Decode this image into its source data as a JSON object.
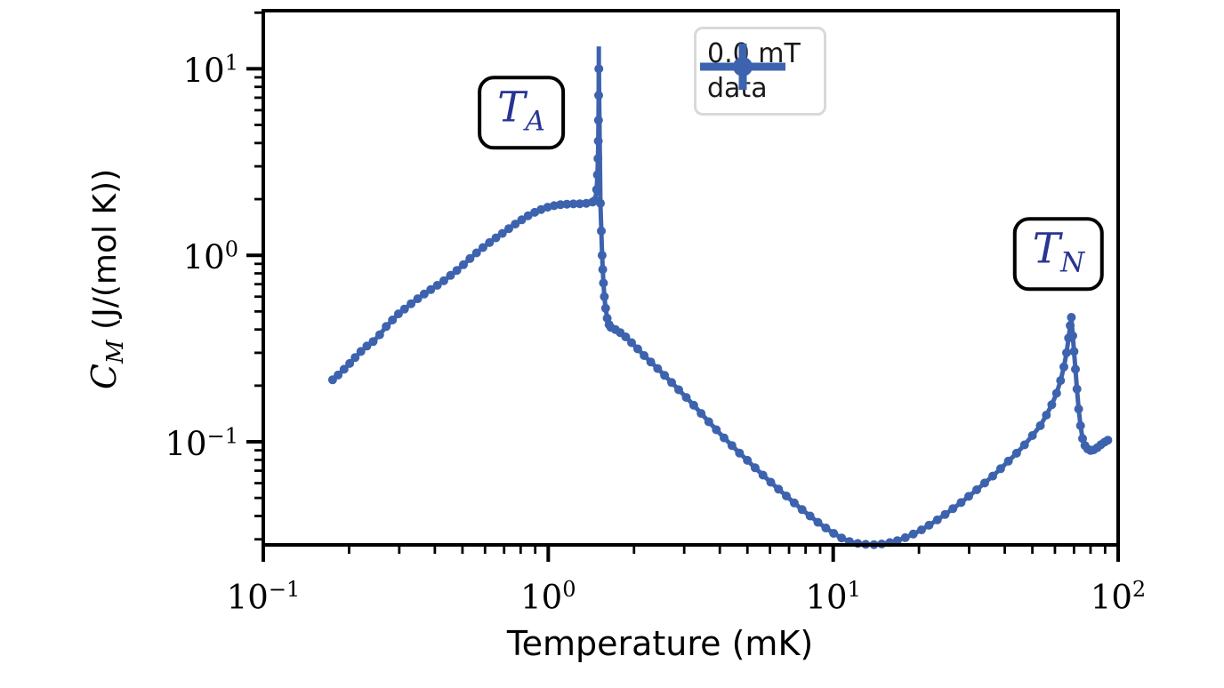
{
  "figure": {
    "background": "#ffffff",
    "curve_color": "#3d63ae",
    "annotation_text_color": "#283593",
    "axis_color": "#000000",
    "legend_border_color": "#d9d9d9"
  },
  "chart_data": {
    "type": "line",
    "subtype": "errorbar-scatter, log-log axes",
    "title": "",
    "xlabel": "Temperature (mK)",
    "ylabel": "C_M (J/(mol K))",
    "ylabel_var": "C",
    "ylabel_var_sub": "M",
    "ylabel_units": "(J/(mol K))",
    "xscale": "log",
    "yscale": "log",
    "xlim": [
      0.1,
      100
    ],
    "ylim": [
      0.028,
      20.5
    ],
    "grid": false,
    "x_ticks": [
      {
        "v": 0.1,
        "base": "10",
        "exp": "−1"
      },
      {
        "v": 1,
        "base": "10",
        "exp": "0"
      },
      {
        "v": 10,
        "base": "10",
        "exp": "1"
      },
      {
        "v": 100,
        "base": "10",
        "exp": "2"
      }
    ],
    "y_ticks": [
      {
        "v": 0.1,
        "base": "10",
        "exp": "−1"
      },
      {
        "v": 1,
        "base": "10",
        "exp": "0"
      },
      {
        "v": 10,
        "base": "10",
        "exp": "1"
      }
    ],
    "legend": {
      "position": "upper center",
      "line1": "0.0 mT",
      "line2": "data"
    },
    "annotations": [
      {
        "main": "T",
        "sub": "A",
        "near_x_mK": 1.5,
        "meaning": "anomaly peak label"
      },
      {
        "main": "T",
        "sub": "N",
        "near_x_mK": 68,
        "meaning": "Neel peak label"
      }
    ],
    "series": [
      {
        "name": "0.0 mT data",
        "points": [
          [
            0.175,
            0.215
          ],
          [
            0.183,
            0.228
          ],
          [
            0.192,
            0.245
          ],
          [
            0.201,
            0.263
          ],
          [
            0.21,
            0.283
          ],
          [
            0.22,
            0.305
          ],
          [
            0.231,
            0.326
          ],
          [
            0.243,
            0.345
          ],
          [
            0.256,
            0.375
          ],
          [
            0.27,
            0.415
          ],
          [
            0.284,
            0.45
          ],
          [
            0.298,
            0.485
          ],
          [
            0.313,
            0.515
          ],
          [
            0.33,
            0.55
          ],
          [
            0.348,
            0.585
          ],
          [
            0.367,
            0.62
          ],
          [
            0.387,
            0.655
          ],
          [
            0.408,
            0.69
          ],
          [
            0.43,
            0.73
          ],
          [
            0.454,
            0.78
          ],
          [
            0.478,
            0.83
          ],
          [
            0.504,
            0.89
          ],
          [
            0.531,
            0.96
          ],
          [
            0.56,
            1.03
          ],
          [
            0.59,
            1.1
          ],
          [
            0.622,
            1.17
          ],
          [
            0.655,
            1.24
          ],
          [
            0.69,
            1.31
          ],
          [
            0.727,
            1.39
          ],
          [
            0.766,
            1.47
          ],
          [
            0.807,
            1.55
          ],
          [
            0.85,
            1.63
          ],
          [
            0.896,
            1.7
          ],
          [
            0.944,
            1.76
          ],
          [
            0.995,
            1.81
          ],
          [
            1.048,
            1.845
          ],
          [
            1.104,
            1.87
          ],
          [
            1.163,
            1.88
          ],
          [
            1.225,
            1.885
          ],
          [
            1.29,
            1.89
          ],
          [
            1.36,
            1.9
          ],
          [
            1.43,
            1.93
          ],
          [
            1.46,
            1.97
          ],
          [
            1.478,
            2.25
          ],
          [
            1.488,
            2.7
          ],
          [
            1.494,
            3.3
          ],
          [
            1.498,
            4.1
          ],
          [
            1.501,
            5.3
          ],
          [
            1.503,
            7.2
          ],
          [
            1.505,
            10.0,
            0.12
          ],
          [
            1.525,
            1.9
          ],
          [
            1.535,
            1.35
          ],
          [
            1.545,
            1.0
          ],
          [
            1.553,
            0.84
          ],
          [
            1.562,
            0.71
          ],
          [
            1.574,
            0.6
          ],
          [
            1.59,
            0.52
          ],
          [
            1.61,
            0.46
          ],
          [
            1.635,
            0.425
          ],
          [
            1.66,
            0.41
          ],
          [
            1.72,
            0.4
          ],
          [
            1.79,
            0.385
          ],
          [
            1.87,
            0.365
          ],
          [
            1.96,
            0.34
          ],
          [
            2.06,
            0.315
          ],
          [
            2.17,
            0.29
          ],
          [
            2.29,
            0.268
          ],
          [
            2.42,
            0.247
          ],
          [
            2.56,
            0.227
          ],
          [
            2.71,
            0.208
          ],
          [
            2.87,
            0.19
          ],
          [
            3.05,
            0.173
          ],
          [
            3.24,
            0.157
          ],
          [
            3.44,
            0.142
          ],
          [
            3.66,
            0.128
          ],
          [
            3.89,
            0.116
          ],
          [
            4.14,
            0.105
          ],
          [
            4.41,
            0.0955
          ],
          [
            4.69,
            0.087
          ],
          [
            5.0,
            0.0795
          ],
          [
            5.32,
            0.0725
          ],
          [
            5.67,
            0.0663
          ],
          [
            6.04,
            0.0607
          ],
          [
            6.43,
            0.0557
          ],
          [
            6.85,
            0.0512
          ],
          [
            7.3,
            0.047
          ],
          [
            7.78,
            0.0433
          ],
          [
            8.3,
            0.04
          ],
          [
            8.84,
            0.037
          ],
          [
            9.42,
            0.0345
          ],
          [
            10.04,
            0.0323
          ],
          [
            10.7,
            0.0305
          ],
          [
            11.4,
            0.0292
          ],
          [
            12.2,
            0.0285
          ],
          [
            13.0,
            0.0282
          ],
          [
            13.9,
            0.0281
          ],
          [
            14.8,
            0.0283
          ],
          [
            15.8,
            0.0288
          ],
          [
            16.8,
            0.0295
          ],
          [
            17.9,
            0.0306
          ],
          [
            19.1,
            0.032
          ],
          [
            20.4,
            0.0337
          ],
          [
            21.7,
            0.0357
          ],
          [
            23.2,
            0.0381
          ],
          [
            24.7,
            0.0408
          ],
          [
            26.3,
            0.0438
          ],
          [
            28.1,
            0.0472
          ],
          [
            29.9,
            0.051
          ],
          [
            31.9,
            0.0553
          ],
          [
            34.0,
            0.0601
          ],
          [
            36.3,
            0.0655
          ],
          [
            38.7,
            0.0717
          ],
          [
            41.2,
            0.0787
          ],
          [
            44.0,
            0.0868
          ],
          [
            46.9,
            0.0962
          ],
          [
            50.0,
            0.108
          ],
          [
            53.3,
            0.122
          ],
          [
            56.0,
            0.139
          ],
          [
            58.5,
            0.158
          ],
          [
            60.8,
            0.182
          ],
          [
            62.8,
            0.213
          ],
          [
            64.5,
            0.252
          ],
          [
            65.9,
            0.3
          ],
          [
            67.0,
            0.36
          ],
          [
            67.9,
            0.42
          ],
          [
            68.5,
            0.465
          ],
          [
            69.3,
            0.37
          ],
          [
            70.0,
            0.305
          ],
          [
            70.8,
            0.245
          ],
          [
            71.7,
            0.192
          ],
          [
            72.7,
            0.15
          ],
          [
            73.8,
            0.122
          ],
          [
            75.0,
            0.104
          ],
          [
            76.5,
            0.0955
          ],
          [
            78.2,
            0.0915
          ],
          [
            80.0,
            0.0898
          ],
          [
            82.0,
            0.0905
          ],
          [
            84.5,
            0.093
          ],
          [
            87.0,
            0.0965
          ],
          [
            89.5,
            0.0995
          ],
          [
            92.0,
            0.102
          ]
        ]
      }
    ]
  }
}
